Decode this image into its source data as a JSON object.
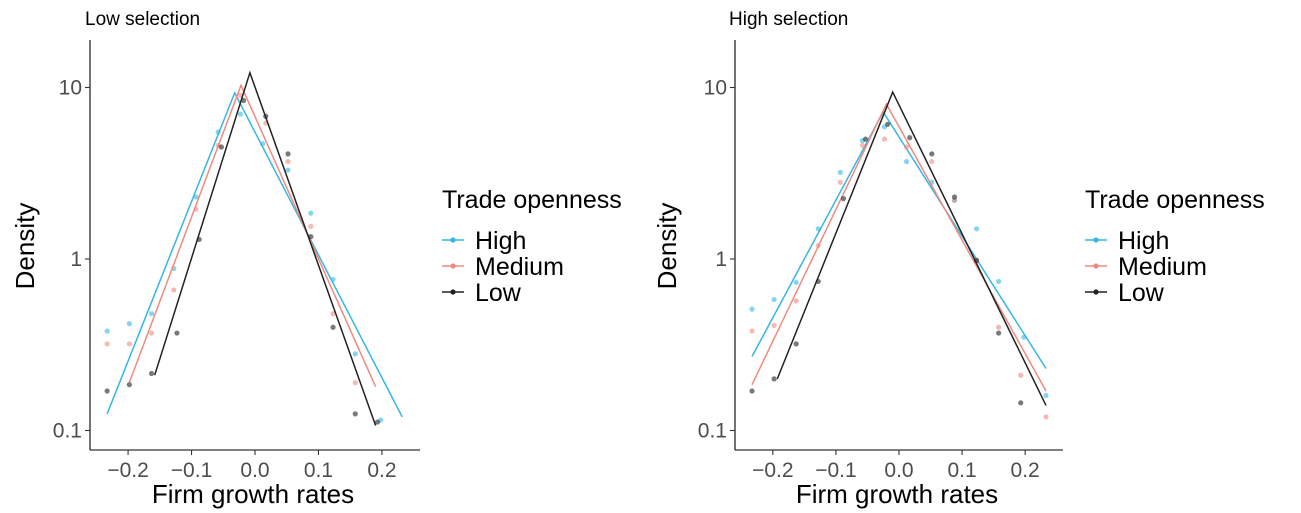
{
  "colors": {
    "High": "#35b7e3",
    "Medium": "#f08a80",
    "Low": "#222222"
  },
  "legend": {
    "title": "Trade openness",
    "entries": [
      {
        "name": "High",
        "color": "#35b7e3"
      },
      {
        "name": "Medium",
        "color": "#f08a80"
      },
      {
        "name": "Low",
        "color": "#222222"
      }
    ]
  },
  "chart_data": [
    {
      "type": "scatter",
      "title": "Low selection",
      "xlabel": "Firm growth rates",
      "ylabel": "Density",
      "y_scale": "log10",
      "xlim": [
        -0.26,
        0.26
      ],
      "ylim": [
        0.08,
        20
      ],
      "x_ticks": [
        -0.2,
        -0.1,
        0.0,
        0.1,
        0.2
      ],
      "x_tick_labels": [
        "−0.2",
        "−0.1",
        "0.0",
        "0.1",
        "0.2"
      ],
      "y_ticks": [
        0.1,
        1,
        10
      ],
      "y_tick_labels": [
        "0.1",
        "1",
        "10"
      ],
      "grid": false,
      "legend_position": "right",
      "series": [
        {
          "name": "High",
          "points": [
            [
              -0.233,
              0.38
            ],
            [
              -0.198,
              0.42
            ],
            [
              -0.163,
              0.48
            ],
            [
              -0.128,
              0.88
            ],
            [
              -0.093,
              2.3
            ],
            [
              -0.058,
              5.5
            ],
            [
              -0.023,
              7.0
            ],
            [
              0.012,
              4.7
            ],
            [
              0.052,
              3.3
            ],
            [
              0.088,
              1.85
            ],
            [
              0.123,
              0.76
            ],
            [
              0.158,
              0.28
            ],
            [
              0.198,
              0.115
            ]
          ],
          "fit": [
            [
              -0.233,
              0.125
            ],
            [
              -0.032,
              9.3
            ],
            [
              0.232,
              0.12
            ]
          ]
        },
        {
          "name": "Medium",
          "points": [
            [
              -0.233,
              0.32
            ],
            [
              -0.198,
              0.32
            ],
            [
              -0.163,
              0.37
            ],
            [
              -0.128,
              0.66
            ],
            [
              -0.093,
              1.95
            ],
            [
              -0.058,
              4.6
            ],
            [
              -0.023,
              9.0
            ],
            [
              0.017,
              6.2
            ],
            [
              0.052,
              3.7
            ],
            [
              0.088,
              1.55
            ],
            [
              0.123,
              0.48
            ],
            [
              0.158,
              0.19
            ]
          ],
          "fit": [
            [
              -0.198,
              0.19
            ],
            [
              -0.022,
              10.3
            ],
            [
              0.19,
              0.18
            ]
          ]
        },
        {
          "name": "Low",
          "points": [
            [
              -0.233,
              0.17
            ],
            [
              -0.198,
              0.185
            ],
            [
              -0.163,
              0.215
            ],
            [
              -0.123,
              0.37
            ],
            [
              -0.088,
              1.3
            ],
            [
              -0.053,
              4.5
            ],
            [
              -0.018,
              8.4
            ],
            [
              0.017,
              6.8
            ],
            [
              0.052,
              4.1
            ],
            [
              0.088,
              1.35
            ],
            [
              0.123,
              0.4
            ],
            [
              0.158,
              0.125
            ],
            [
              0.193,
              0.112
            ]
          ],
          "fit": [
            [
              -0.158,
              0.21
            ],
            [
              -0.008,
              12.2
            ],
            [
              0.19,
              0.107
            ]
          ]
        }
      ]
    },
    {
      "type": "scatter",
      "title": "High selection",
      "xlabel": "Firm growth rates",
      "ylabel": "Density",
      "y_scale": "log10",
      "xlim": [
        -0.26,
        0.26
      ],
      "ylim": [
        0.08,
        20
      ],
      "x_ticks": [
        -0.2,
        -0.1,
        0.0,
        0.1,
        0.2
      ],
      "x_tick_labels": [
        "−0.2",
        "−0.1",
        "0.0",
        "0.1",
        "0.2"
      ],
      "y_ticks": [
        0.1,
        1,
        10
      ],
      "y_tick_labels": [
        "0.1",
        "1",
        "10"
      ],
      "grid": false,
      "legend_position": "right",
      "series": [
        {
          "name": "High",
          "points": [
            [
              -0.233,
              0.51
            ],
            [
              -0.198,
              0.58
            ],
            [
              -0.163,
              0.73
            ],
            [
              -0.128,
              1.5
            ],
            [
              -0.093,
              3.2
            ],
            [
              -0.058,
              4.9
            ],
            [
              -0.023,
              5.9
            ],
            [
              0.012,
              3.7
            ],
            [
              0.052,
              2.8
            ],
            [
              0.088,
              2.2
            ],
            [
              0.123,
              1.5
            ],
            [
              0.158,
              0.74
            ],
            [
              0.198,
              0.35
            ],
            [
              0.233,
              0.16
            ]
          ],
          "fit": [
            [
              -0.233,
              0.27
            ],
            [
              -0.025,
              7.2
            ],
            [
              0.233,
              0.23
            ]
          ]
        },
        {
          "name": "Medium",
          "points": [
            [
              -0.233,
              0.38
            ],
            [
              -0.198,
              0.41
            ],
            [
              -0.163,
              0.57
            ],
            [
              -0.128,
              1.2
            ],
            [
              -0.093,
              2.8
            ],
            [
              -0.058,
              4.6
            ],
            [
              -0.023,
              5.0
            ],
            [
              0.012,
              4.5
            ],
            [
              0.052,
              3.7
            ],
            [
              0.088,
              2.2
            ],
            [
              0.123,
              0.98
            ],
            [
              0.158,
              0.4
            ],
            [
              0.193,
              0.21
            ],
            [
              0.233,
              0.12
            ]
          ],
          "fit": [
            [
              -0.233,
              0.185
            ],
            [
              -0.02,
              8.0
            ],
            [
              0.233,
              0.17
            ]
          ]
        },
        {
          "name": "Low",
          "points": [
            [
              -0.233,
              0.17
            ],
            [
              -0.198,
              0.2
            ],
            [
              -0.163,
              0.32
            ],
            [
              -0.128,
              0.74
            ],
            [
              -0.088,
              2.25
            ],
            [
              -0.053,
              5.0
            ],
            [
              -0.018,
              6.1
            ],
            [
              0.017,
              5.1
            ],
            [
              0.052,
              4.1
            ],
            [
              0.088,
              2.3
            ],
            [
              0.123,
              0.98
            ],
            [
              0.158,
              0.37
            ],
            [
              0.193,
              0.145
            ]
          ],
          "fit": [
            [
              -0.193,
              0.2
            ],
            [
              -0.01,
              9.4
            ],
            [
              0.233,
              0.14
            ]
          ]
        }
      ]
    }
  ]
}
